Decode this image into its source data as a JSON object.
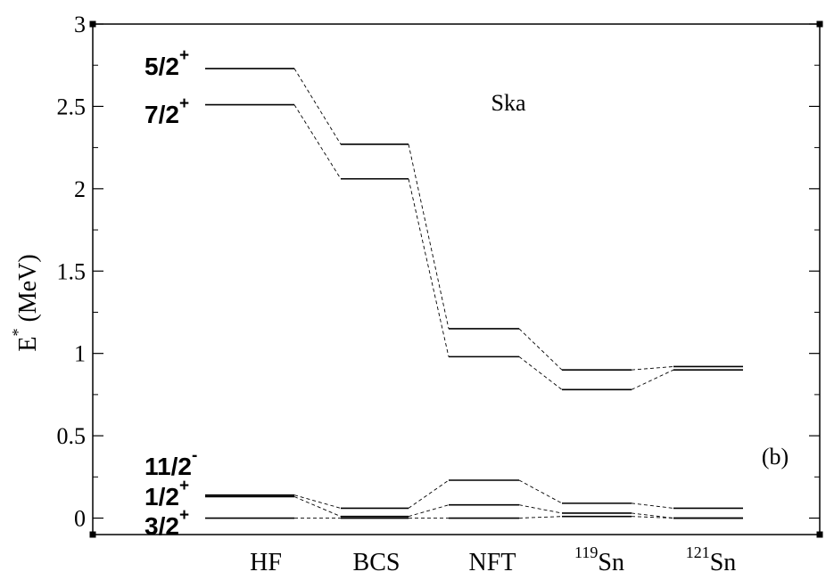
{
  "chart_data": {
    "type": "line",
    "ylabel": "E",
    "ylabel_sup": "*",
    "ylabel_unit": " (MeV)",
    "ylim": [
      -0.1,
      3.0
    ],
    "yticks": [
      0,
      0.5,
      1,
      1.5,
      2,
      2.5,
      3
    ],
    "ytick_labels": [
      "0",
      "0.5",
      "1",
      "1.5",
      "2",
      "2.5",
      "3"
    ],
    "grid": false,
    "annotation_model": "Ska",
    "annotation_panel": "(b)",
    "columns": [
      {
        "label": "HF",
        "sup": ""
      },
      {
        "label": "BCS",
        "sup": ""
      },
      {
        "label": "NFT",
        "sup": ""
      },
      {
        "label": "Sn",
        "sup": "119"
      },
      {
        "label": "Sn",
        "sup": "121"
      }
    ],
    "states": [
      {
        "base": "5/2",
        "sup": "+",
        "values": [
          2.73,
          2.27,
          1.15,
          0.9,
          0.92
        ]
      },
      {
        "base": "7/2",
        "sup": "+",
        "values": [
          2.51,
          2.06,
          0.98,
          0.78,
          0.9
        ]
      },
      {
        "base": "11/2",
        "sup": "-",
        "values": [
          0.14,
          0.06,
          0.23,
          0.09,
          0.06
        ]
      },
      {
        "base": "1/2",
        "sup": "+",
        "values": [
          0.13,
          0.01,
          0.08,
          0.03,
          0.0
        ]
      },
      {
        "base": "3/2",
        "sup": "+",
        "values": [
          0.0,
          0.0,
          0.0,
          0.01,
          0.0
        ]
      }
    ]
  }
}
